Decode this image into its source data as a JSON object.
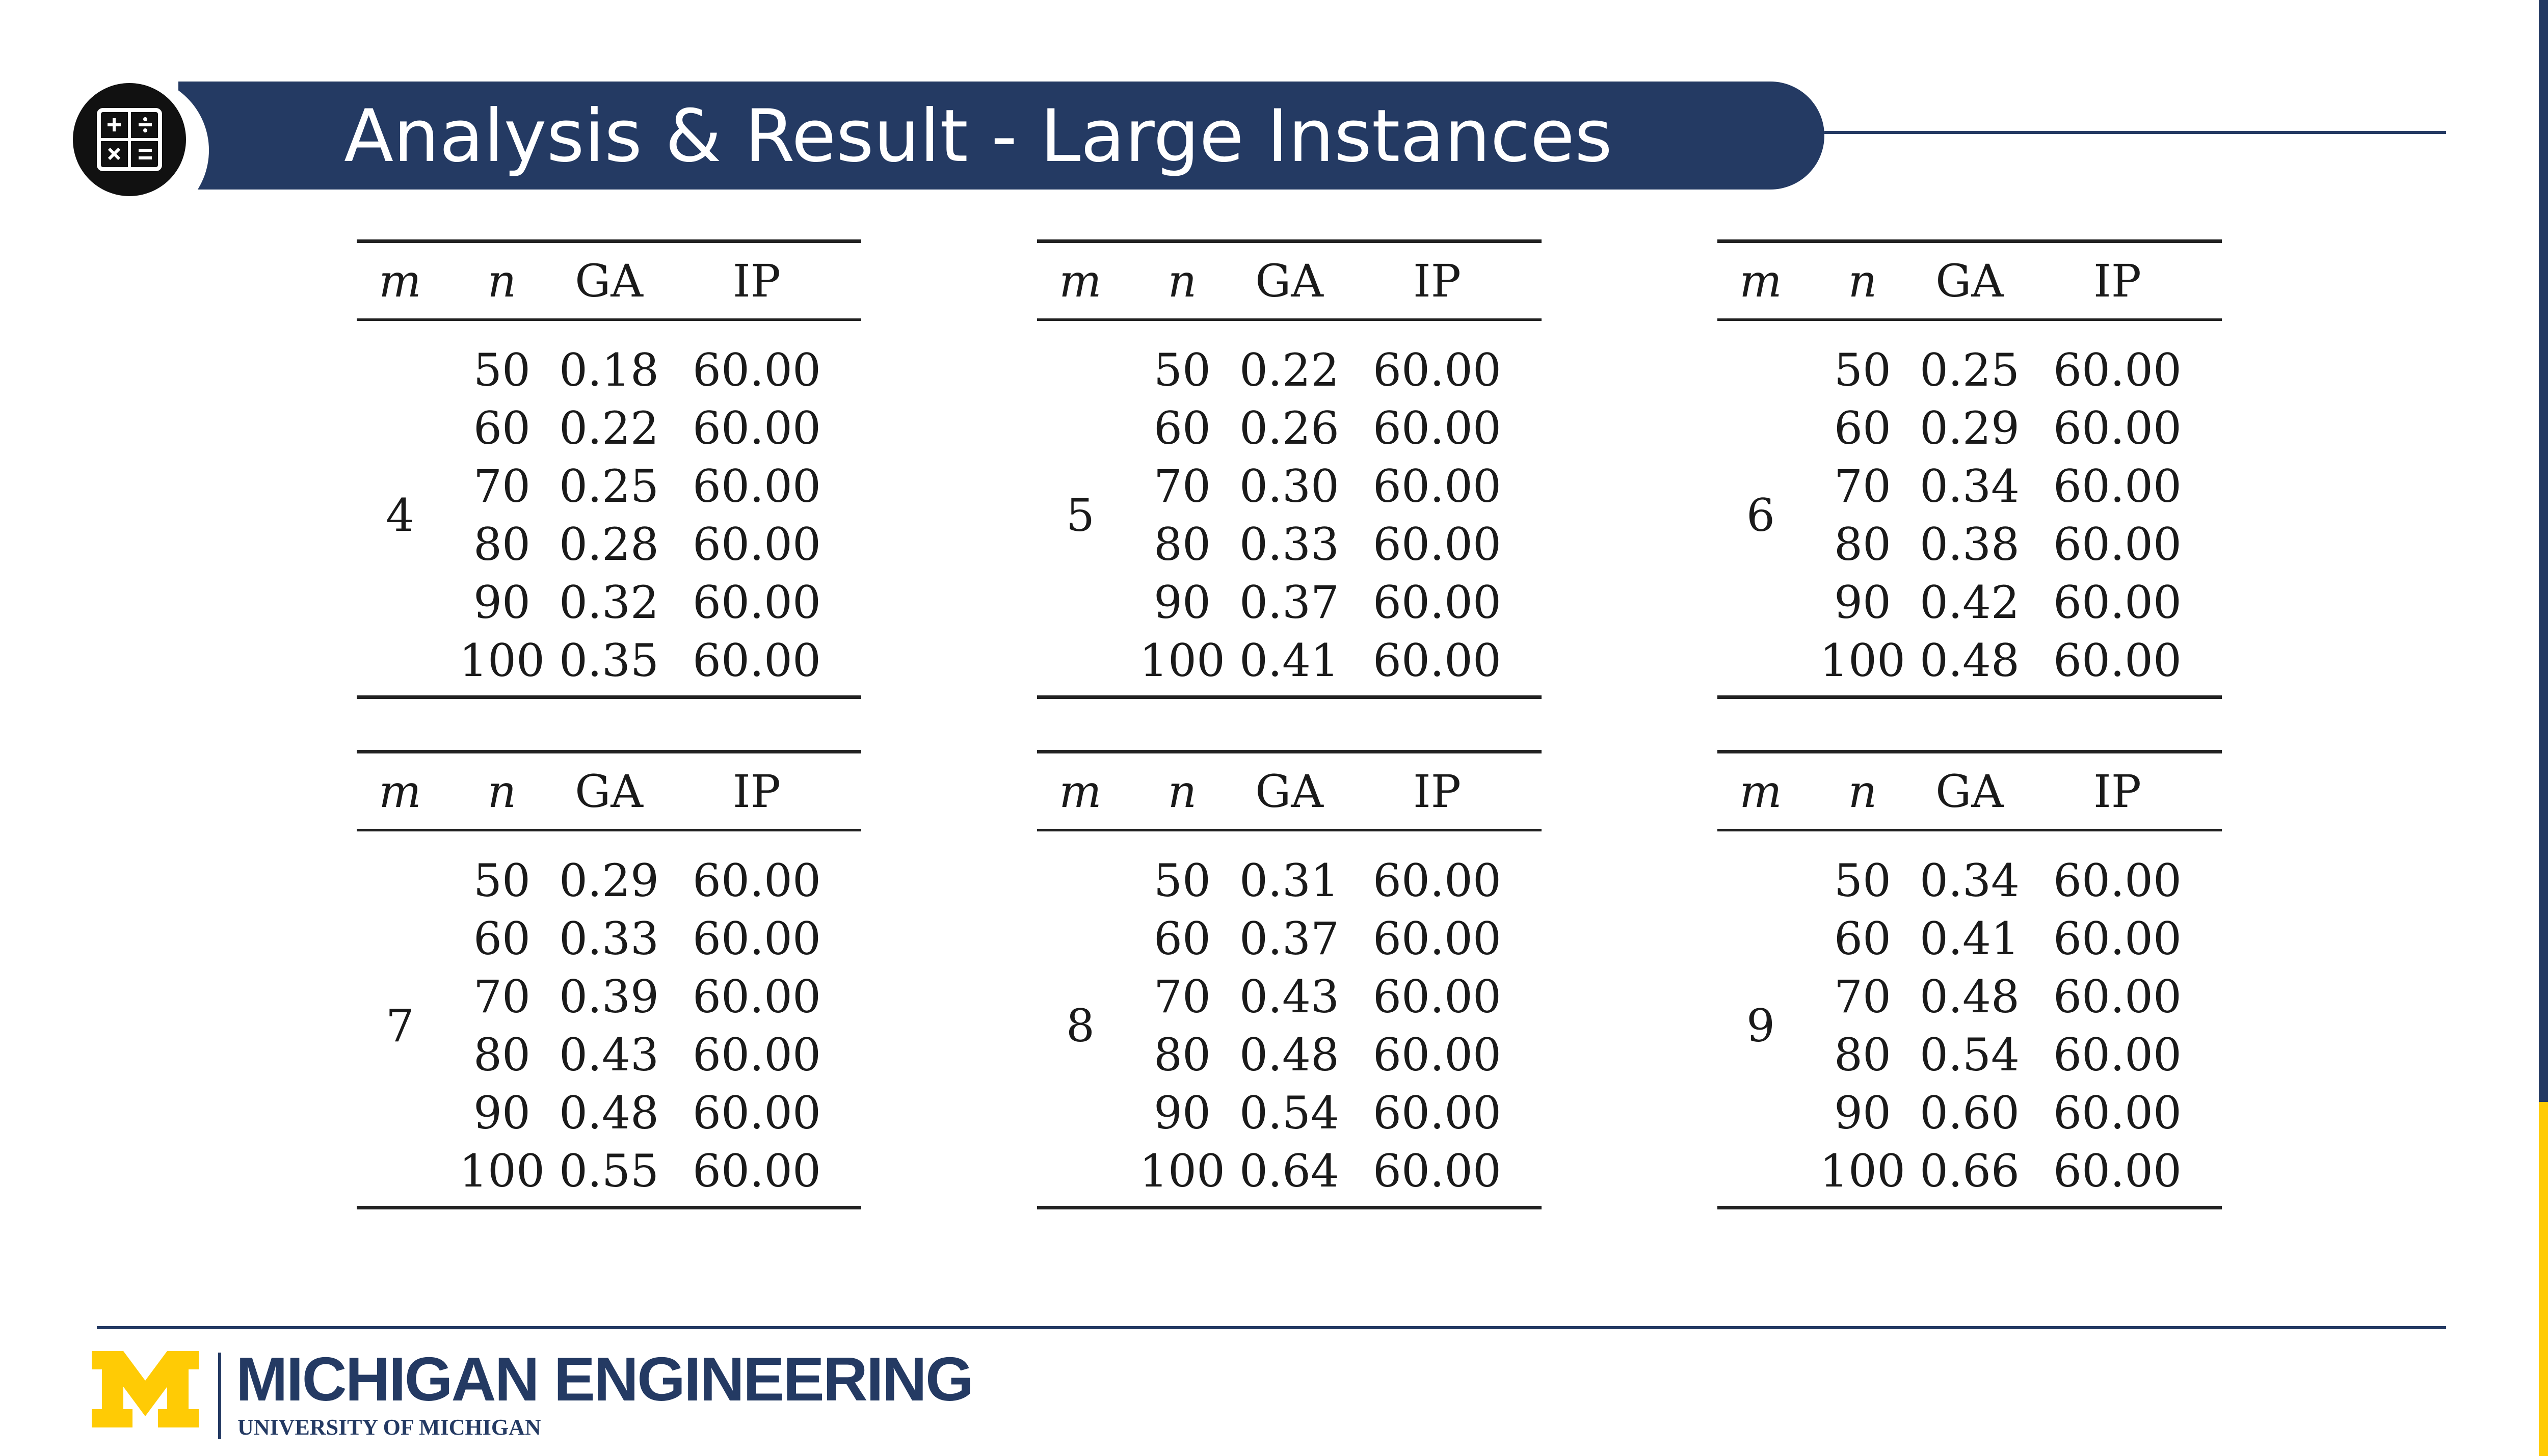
{
  "slide": {
    "title": "Analysis & Result - Large Instances",
    "title_icon": "calculator-icon",
    "colors": {
      "navy": "#243a63",
      "maize": "#ffcb05",
      "rule": "#222222"
    }
  },
  "table_headers": {
    "m": "m",
    "n": "n",
    "ga": "GA",
    "ip": "IP"
  },
  "tables": [
    {
      "m": "4",
      "rows": [
        {
          "n": "50",
          "ga": "0.18",
          "ip": "60.00"
        },
        {
          "n": "60",
          "ga": "0.22",
          "ip": "60.00"
        },
        {
          "n": "70",
          "ga": "0.25",
          "ip": "60.00"
        },
        {
          "n": "80",
          "ga": "0.28",
          "ip": "60.00"
        },
        {
          "n": "90",
          "ga": "0.32",
          "ip": "60.00"
        },
        {
          "n": "100",
          "ga": "0.35",
          "ip": "60.00"
        }
      ]
    },
    {
      "m": "5",
      "rows": [
        {
          "n": "50",
          "ga": "0.22",
          "ip": "60.00"
        },
        {
          "n": "60",
          "ga": "0.26",
          "ip": "60.00"
        },
        {
          "n": "70",
          "ga": "0.30",
          "ip": "60.00"
        },
        {
          "n": "80",
          "ga": "0.33",
          "ip": "60.00"
        },
        {
          "n": "90",
          "ga": "0.37",
          "ip": "60.00"
        },
        {
          "n": "100",
          "ga": "0.41",
          "ip": "60.00"
        }
      ]
    },
    {
      "m": "6",
      "rows": [
        {
          "n": "50",
          "ga": "0.25",
          "ip": "60.00"
        },
        {
          "n": "60",
          "ga": "0.29",
          "ip": "60.00"
        },
        {
          "n": "70",
          "ga": "0.34",
          "ip": "60.00"
        },
        {
          "n": "80",
          "ga": "0.38",
          "ip": "60.00"
        },
        {
          "n": "90",
          "ga": "0.42",
          "ip": "60.00"
        },
        {
          "n": "100",
          "ga": "0.48",
          "ip": "60.00"
        }
      ]
    },
    {
      "m": "7",
      "rows": [
        {
          "n": "50",
          "ga": "0.29",
          "ip": "60.00"
        },
        {
          "n": "60",
          "ga": "0.33",
          "ip": "60.00"
        },
        {
          "n": "70",
          "ga": "0.39",
          "ip": "60.00"
        },
        {
          "n": "80",
          "ga": "0.43",
          "ip": "60.00"
        },
        {
          "n": "90",
          "ga": "0.48",
          "ip": "60.00"
        },
        {
          "n": "100",
          "ga": "0.55",
          "ip": "60.00"
        }
      ]
    },
    {
      "m": "8",
      "rows": [
        {
          "n": "50",
          "ga": "0.31",
          "ip": "60.00"
        },
        {
          "n": "60",
          "ga": "0.37",
          "ip": "60.00"
        },
        {
          "n": "70",
          "ga": "0.43",
          "ip": "60.00"
        },
        {
          "n": "80",
          "ga": "0.48",
          "ip": "60.00"
        },
        {
          "n": "90",
          "ga": "0.54",
          "ip": "60.00"
        },
        {
          "n": "100",
          "ga": "0.64",
          "ip": "60.00"
        }
      ]
    },
    {
      "m": "9",
      "rows": [
        {
          "n": "50",
          "ga": "0.34",
          "ip": "60.00"
        },
        {
          "n": "60",
          "ga": "0.41",
          "ip": "60.00"
        },
        {
          "n": "70",
          "ga": "0.48",
          "ip": "60.00"
        },
        {
          "n": "80",
          "ga": "0.54",
          "ip": "60.00"
        },
        {
          "n": "90",
          "ga": "0.60",
          "ip": "60.00"
        },
        {
          "n": "100",
          "ga": "0.66",
          "ip": "60.00"
        }
      ]
    }
  ],
  "footer": {
    "logo_icon": "block-m-logo-icon",
    "brand": "MICHIGAN ENGINEERING",
    "sub": "UNIVERSITY OF MICHIGAN"
  }
}
